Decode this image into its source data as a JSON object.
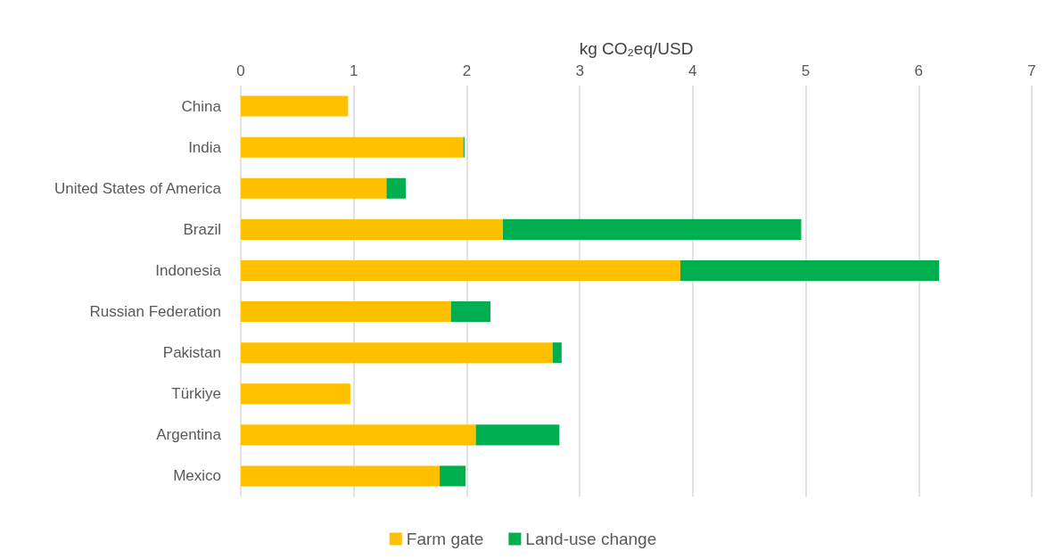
{
  "chart_data": {
    "type": "bar",
    "orientation": "horizontal",
    "stacked": true,
    "xlabel": "kg CO₂eq/USD",
    "categories": [
      "China",
      "India",
      "United States of America",
      "Brazil",
      "Indonesia",
      "Russian Federation",
      "Pakistan",
      "Türkiye",
      "Argentina",
      "Mexico"
    ],
    "series": [
      {
        "name": "Farm gate",
        "color": "#ffc000",
        "values": [
          0.95,
          1.97,
          1.29,
          2.32,
          3.89,
          1.86,
          2.76,
          0.97,
          2.08,
          1.76
        ]
      },
      {
        "name": "Land-use change",
        "color": "#00b050",
        "values": [
          null,
          0.01,
          0.17,
          2.64,
          2.29,
          0.35,
          0.08,
          null,
          0.74,
          0.23
        ]
      }
    ],
    "xlim": [
      0,
      7
    ],
    "xticks": [
      0,
      1,
      2,
      3,
      4,
      5,
      6,
      7
    ],
    "grid": "x",
    "legend": "bottom"
  }
}
